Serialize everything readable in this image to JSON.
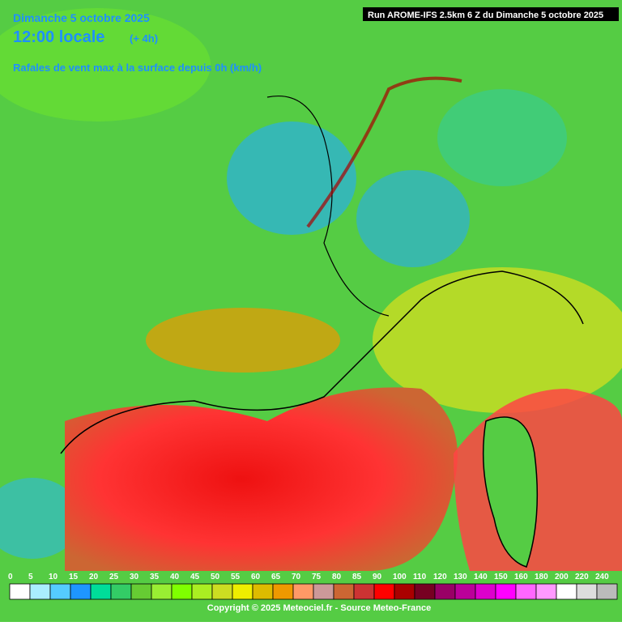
{
  "header": {
    "date": "Dimanche 5 octobre 2025",
    "time": "12:00 locale",
    "offset": "(+ 4h)",
    "parameter": "Rafales de vent max à la surface depuis 0h (km/h)",
    "run": "Run AROME-IFS 2.5km 6 Z du Dimanche 5 octobre 2025"
  },
  "legend": {
    "labels": [
      0,
      5,
      10,
      15,
      20,
      25,
      30,
      35,
      40,
      45,
      50,
      55,
      60,
      65,
      70,
      75,
      80,
      85,
      90,
      100,
      110,
      120,
      130,
      140,
      150,
      160,
      180,
      200,
      220,
      240
    ],
    "colors": [
      "#ffffff",
      "#aaeeff",
      "#55ccff",
      "#1e96ff",
      "#00dd99",
      "#33cc66",
      "#66cc33",
      "#99ee33",
      "#7fff00",
      "#aaee22",
      "#ccdd22",
      "#eeee00",
      "#ddbb00",
      "#ee9900",
      "#ff9966",
      "#cc9999",
      "#cc6633",
      "#cc3333",
      "#ff0000",
      "#aa0000",
      "#770022",
      "#990066",
      "#bb0099",
      "#dd00cc",
      "#ff00ff",
      "#ff66ff",
      "#ff99ff",
      "#ffffff",
      "#dddddd",
      "#bbbbbb"
    ]
  },
  "footer": {
    "copyright": "Copyright © 2025 Meteociel.fr - Source Meteo-France"
  }
}
